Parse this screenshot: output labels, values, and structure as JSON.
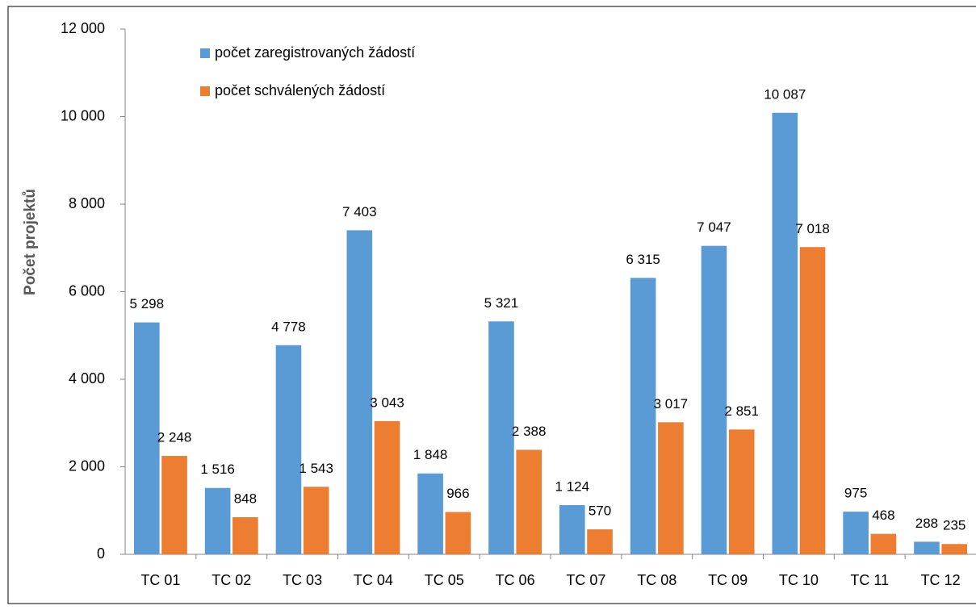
{
  "chart_data": {
    "type": "bar",
    "y_label": "Počet projektů",
    "categories": [
      "TC 01",
      "TC 02",
      "TC 03",
      "TC 04",
      "TC 05",
      "TC 06",
      "TC 07",
      "TC 08",
      "TC 09",
      "TC 10",
      "TC 11",
      "TC 12"
    ],
    "series": [
      {
        "name": "počet zaregistrovaných žádostí",
        "color": "#5b9bd5",
        "values": [
          5298,
          1516,
          4778,
          7403,
          1848,
          5321,
          1124,
          6315,
          7047,
          10087,
          975,
          288
        ],
        "value_labels": [
          "5 298",
          "1 516",
          "4 778",
          "7 403",
          "1 848",
          "5 321",
          "1 124",
          "6 315",
          "7 047",
          "10 087",
          "975",
          "288"
        ]
      },
      {
        "name": "počet schválených žádostí",
        "color": "#ed7d31",
        "values": [
          2248,
          848,
          1543,
          3043,
          966,
          2388,
          570,
          3017,
          2851,
          7018,
          468,
          235
        ],
        "value_labels": [
          "2 248",
          "848",
          "1 543",
          "3 043",
          "966",
          "2 388",
          "570",
          "3 017",
          "2 851",
          "7 018",
          "468",
          "235"
        ]
      }
    ],
    "ylim": [
      0,
      12000
    ],
    "yticks": [
      0,
      {
        "value": 2000,
        "label": "2 000"
      },
      {
        "value": 4000,
        "label": "4 000"
      },
      {
        "value": 6000,
        "label": "6 000"
      },
      {
        "value": 8000,
        "label": "8 000"
      },
      {
        "value": 10000,
        "label": "10 000"
      },
      {
        "value": 12000,
        "label": "12 000"
      }
    ],
    "grid": false,
    "legend": "top-left"
  }
}
